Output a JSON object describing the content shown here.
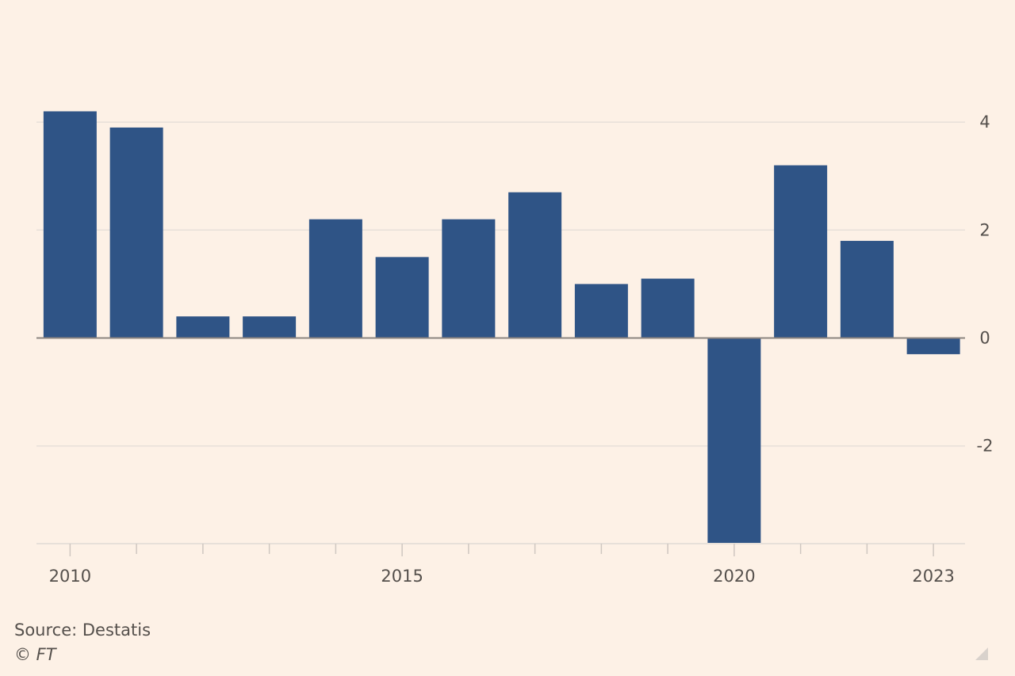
{
  "chart_data": {
    "type": "bar",
    "categories": [
      "2010",
      "2011",
      "2012",
      "2013",
      "2014",
      "2015",
      "2016",
      "2017",
      "2018",
      "2019",
      "2020",
      "2021",
      "2022",
      "2023"
    ],
    "values": [
      4.2,
      3.9,
      0.4,
      0.4,
      2.2,
      1.5,
      2.2,
      2.7,
      1.0,
      1.1,
      -3.8,
      3.2,
      1.8,
      -0.3
    ],
    "x_tick_labels": [
      "2010",
      "2015",
      "2020",
      "2023"
    ],
    "y_ticks": [
      4,
      2,
      0,
      -2
    ],
    "y_tick_labels": [
      "4",
      "2",
      "0",
      "-2"
    ],
    "ylim": [
      -3.8,
      4.2
    ],
    "y_axis_position": "right",
    "grid": true,
    "bar_color": "#2f5486",
    "grid_color": "#e7e0d9",
    "zero_line_color": "#8c8580",
    "background": "#fdf1e6"
  },
  "footer": {
    "source": "Source: Destatis",
    "copyright": "© FT"
  }
}
